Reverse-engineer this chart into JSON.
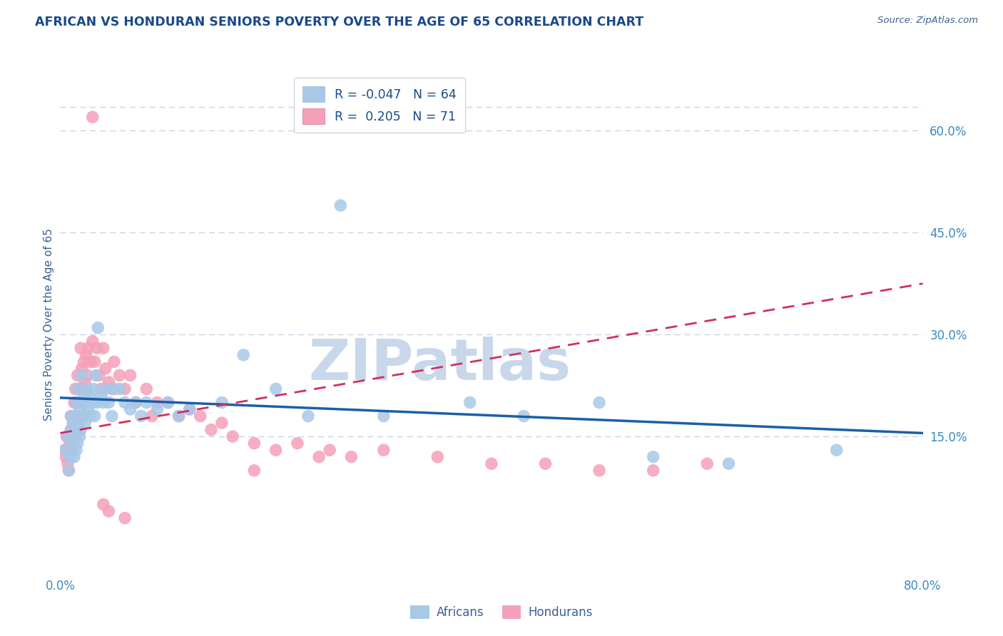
{
  "title": "AFRICAN VS HONDURAN SENIORS POVERTY OVER THE AGE OF 65 CORRELATION CHART",
  "source_text": "Source: ZipAtlas.com",
  "ylabel": "Seniors Poverty Over the Age of 65",
  "xlim": [
    0.0,
    0.8
  ],
  "ylim": [
    -0.05,
    0.68
  ],
  "ytick_positions_right": [
    0.15,
    0.3,
    0.45,
    0.6
  ],
  "ytick_labels_right": [
    "15.0%",
    "30.0%",
    "45.0%",
    "60.0%"
  ],
  "african_color": "#a8c8e8",
  "honduran_color": "#f4a0b8",
  "african_line_color": "#1a5fa8",
  "honduran_line_color": "#d03060",
  "watermark": "ZIPatlas",
  "watermark_color": "#c8d8ea",
  "legend_R_african": "R = -0.047",
  "legend_N_african": "N = 64",
  "legend_R_honduran": "R =  0.205",
  "legend_N_honduran": "N = 71",
  "african_x": [
    0.005,
    0.007,
    0.008,
    0.009,
    0.01,
    0.01,
    0.012,
    0.012,
    0.013,
    0.013,
    0.014,
    0.015,
    0.015,
    0.015,
    0.016,
    0.016,
    0.017,
    0.018,
    0.018,
    0.019,
    0.02,
    0.02,
    0.021,
    0.022,
    0.023,
    0.024,
    0.025,
    0.026,
    0.027,
    0.028,
    0.03,
    0.031,
    0.032,
    0.033,
    0.034,
    0.035,
    0.038,
    0.04,
    0.042,
    0.045,
    0.048,
    0.05,
    0.055,
    0.06,
    0.065,
    0.07,
    0.075,
    0.08,
    0.09,
    0.1,
    0.11,
    0.12,
    0.15,
    0.17,
    0.2,
    0.23,
    0.26,
    0.3,
    0.38,
    0.43,
    0.5,
    0.55,
    0.62,
    0.72
  ],
  "african_y": [
    0.13,
    0.15,
    0.1,
    0.12,
    0.16,
    0.18,
    0.14,
    0.17,
    0.12,
    0.15,
    0.18,
    0.13,
    0.16,
    0.2,
    0.14,
    0.22,
    0.17,
    0.15,
    0.19,
    0.16,
    0.2,
    0.24,
    0.18,
    0.21,
    0.17,
    0.2,
    0.22,
    0.19,
    0.21,
    0.18,
    0.2,
    0.22,
    0.18,
    0.24,
    0.2,
    0.31,
    0.21,
    0.2,
    0.22,
    0.2,
    0.18,
    0.22,
    0.22,
    0.2,
    0.19,
    0.2,
    0.18,
    0.2,
    0.19,
    0.2,
    0.18,
    0.19,
    0.2,
    0.27,
    0.22,
    0.18,
    0.49,
    0.18,
    0.2,
    0.18,
    0.2,
    0.12,
    0.11,
    0.13
  ],
  "honduran_x": [
    0.004,
    0.005,
    0.006,
    0.007,
    0.008,
    0.009,
    0.01,
    0.01,
    0.011,
    0.012,
    0.013,
    0.013,
    0.014,
    0.014,
    0.015,
    0.015,
    0.016,
    0.016,
    0.017,
    0.018,
    0.019,
    0.02,
    0.021,
    0.022,
    0.023,
    0.024,
    0.025,
    0.026,
    0.028,
    0.03,
    0.032,
    0.034,
    0.036,
    0.038,
    0.04,
    0.042,
    0.045,
    0.048,
    0.05,
    0.055,
    0.06,
    0.065,
    0.07,
    0.08,
    0.085,
    0.09,
    0.1,
    0.11,
    0.12,
    0.13,
    0.14,
    0.15,
    0.16,
    0.18,
    0.2,
    0.22,
    0.25,
    0.27,
    0.3,
    0.35,
    0.4,
    0.45,
    0.5,
    0.55,
    0.6,
    0.04,
    0.045,
    0.06,
    0.18,
    0.24,
    0.03
  ],
  "honduran_y": [
    0.13,
    0.12,
    0.15,
    0.11,
    0.1,
    0.14,
    0.16,
    0.18,
    0.13,
    0.17,
    0.2,
    0.15,
    0.22,
    0.18,
    0.16,
    0.2,
    0.24,
    0.2,
    0.18,
    0.22,
    0.28,
    0.25,
    0.22,
    0.26,
    0.23,
    0.27,
    0.24,
    0.28,
    0.26,
    0.29,
    0.26,
    0.28,
    0.24,
    0.22,
    0.28,
    0.25,
    0.23,
    0.22,
    0.26,
    0.24,
    0.22,
    0.24,
    0.2,
    0.22,
    0.18,
    0.2,
    0.2,
    0.18,
    0.19,
    0.18,
    0.16,
    0.17,
    0.15,
    0.14,
    0.13,
    0.14,
    0.13,
    0.12,
    0.13,
    0.12,
    0.11,
    0.11,
    0.1,
    0.1,
    0.11,
    0.05,
    0.04,
    0.03,
    0.1,
    0.12,
    0.62
  ],
  "african_trendline_start_y": 0.207,
  "african_trendline_end_y": 0.155,
  "honduran_trendline_start_y": 0.155,
  "honduran_trendline_end_y": 0.375,
  "grid_color": "#c8d4e4",
  "title_color": "#1a4a8a",
  "axis_label_color": "#3a6090",
  "tick_label_color": "#3a8ac0",
  "background_color": "#ffffff"
}
